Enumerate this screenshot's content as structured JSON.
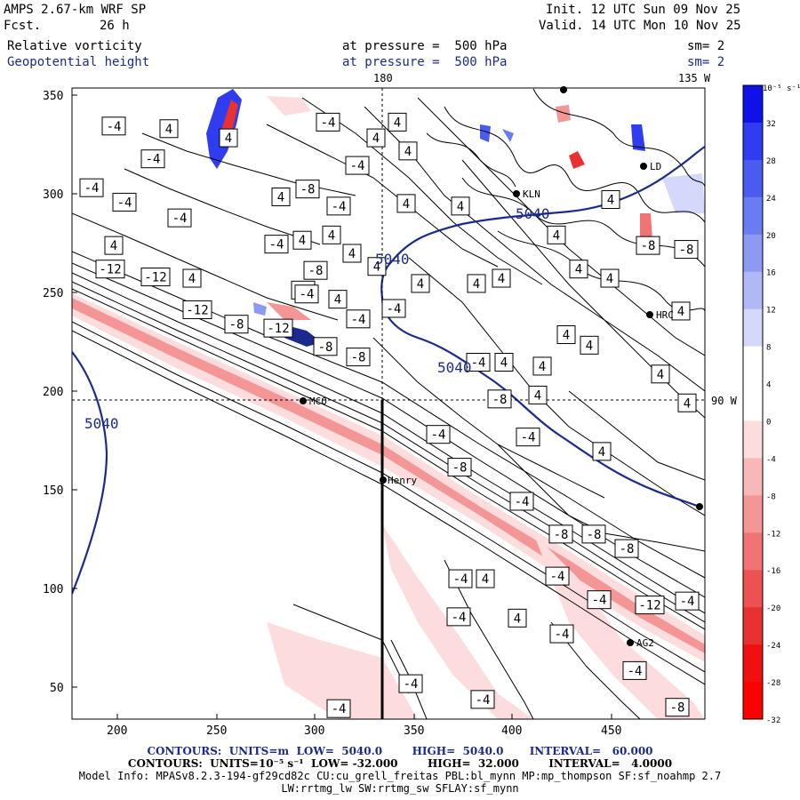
{
  "header": {
    "model": "AMPS 2.67-km WRF SP",
    "forecast_label": "Fcst.",
    "forecast_hours": "26 h",
    "init": "Init. 12 UTC Sun 09 Nov 25",
    "valid": "Valid. 14 UTC Mon 10 Nov 25",
    "field1": {
      "name": "Relative vorticity",
      "level": "at pressure =  500 hPa",
      "smooth": "sm= 2"
    },
    "field2": {
      "name": "Geopotential height",
      "level": "at pressure =  500 hPa",
      "smooth": "sm= 2"
    }
  },
  "map": {
    "meridian_labels": {
      "top_center": "180",
      "top_right": "135 W",
      "right": "90 W"
    },
    "x_ticks": [
      "200",
      "250",
      "300",
      "350",
      "400",
      "450"
    ],
    "y_ticks": [
      "50",
      "100",
      "150",
      "200",
      "250",
      "300",
      "350"
    ],
    "stations": [
      {
        "label": "MCO"
      },
      {
        "label": "Henry"
      },
      {
        "label": "KLN"
      },
      {
        "label": "HRC"
      },
      {
        "label": "AG2"
      },
      {
        "label": "LD"
      }
    ],
    "height_labels": [
      "5040",
      "5040",
      "5040",
      "5040"
    ]
  },
  "colorbar": {
    "unit_label": "10⁻⁵ s⁻¹",
    "ticks": [
      "32",
      "28",
      "24",
      "20",
      "16",
      "12",
      "8",
      "4",
      "0",
      "-4",
      "-8",
      "-12",
      "-16",
      "-20",
      "-24",
      "-28",
      "-32"
    ],
    "colors": [
      "#1010e8",
      "#2f3cf0",
      "#4a5cf0",
      "#6a7cf2",
      "#8c9af4",
      "#b0b8f6",
      "#d4d8fa",
      "#ffffff",
      "#ffffff",
      "#fcdcdc",
      "#f8b8b8",
      "#f49696",
      "#f07474",
      "#ec5252",
      "#e83232",
      "#f01010",
      "#ff0000"
    ]
  },
  "chart_data": {
    "type": "map",
    "title": "Relative vorticity / Geopotential height at 500 hPa",
    "x_range": [
      176,
      495
    ],
    "y_range": [
      34,
      356
    ],
    "contour_boxes": [
      {
        "v": "-4",
        "x": 128,
        "y": 327
      },
      {
        "v": "-4",
        "x": 172,
        "y": 302
      },
      {
        "v": "-4",
        "x": 103,
        "y": 280
      },
      {
        "v": "-4",
        "x": 140,
        "y": 269
      },
      {
        "v": "-4",
        "x": 202,
        "y": 257
      },
      {
        "v": "4",
        "x": 128,
        "y": 236
      },
      {
        "v": "-12",
        "x": 124,
        "y": 218
      },
      {
        "v": "-12",
        "x": 175,
        "y": 212
      },
      {
        "v": "4",
        "x": 216,
        "y": 211
      },
      {
        "v": "-12",
        "x": 222,
        "y": 187
      },
      {
        "v": "-8",
        "x": 266,
        "y": 176
      },
      {
        "v": "-12",
        "x": 313,
        "y": 173
      },
      {
        "v": "-8",
        "x": 366,
        "y": 159
      },
      {
        "v": "-8",
        "x": 403,
        "y": 151
      },
      {
        "v": "4",
        "x": 190,
        "y": 325
      },
      {
        "v": "4",
        "x": 257,
        "y": 318
      },
      {
        "v": "-4",
        "x": 369,
        "y": 330
      },
      {
        "v": "4",
        "x": 447,
        "y": 330
      },
      {
        "v": "4",
        "x": 423,
        "y": 318
      },
      {
        "v": "4",
        "x": 459,
        "y": 308
      },
      {
        "v": "-4",
        "x": 402,
        "y": 297
      },
      {
        "v": "-4",
        "x": 381,
        "y": 266
      },
      {
        "v": "4",
        "x": 316,
        "y": 273
      },
      {
        "v": "4",
        "x": 457,
        "y": 268
      },
      {
        "v": "4",
        "x": 373,
        "y": 244
      },
      {
        "v": "4",
        "x": 340,
        "y": 240
      },
      {
        "v": "-4",
        "x": 311,
        "y": 237
      },
      {
        "v": "4",
        "x": 396,
        "y": 230
      },
      {
        "v": "4",
        "x": 424,
        "y": 220
      },
      {
        "v": "-8",
        "x": 355,
        "y": 217
      },
      {
        "v": "-4",
        "x": 341,
        "y": 202
      },
      {
        "v": "4",
        "x": 380,
        "y": 195
      },
      {
        "v": "-4",
        "x": 443,
        "y": 188
      },
      {
        "v": "-4",
        "x": 403,
        "y": 180
      },
      {
        "v": "4",
        "x": 473,
        "y": 207
      },
      {
        "v": "4",
        "x": 536,
        "y": 207
      },
      {
        "v": "4",
        "x": 564,
        "y": 211
      },
      {
        "v": "4",
        "x": 651,
        "y": 218
      },
      {
        "v": "4",
        "x": 686,
        "y": 211
      },
      {
        "v": "4",
        "x": 626,
        "y": 244
      },
      {
        "v": "4",
        "x": 687,
        "y": 271
      },
      {
        "v": "-8",
        "x": 729,
        "y": 236
      },
      {
        "v": "4",
        "x": 766,
        "y": 186
      },
      {
        "v": "4",
        "x": 637,
        "y": 168
      },
      {
        "v": "4",
        "x": 663,
        "y": 160
      },
      {
        "v": "-4",
        "x": 538,
        "y": 147
      },
      {
        "v": "4",
        "x": 567,
        "y": 147
      },
      {
        "v": "4",
        "x": 610,
        "y": 144
      },
      {
        "v": "-8",
        "x": 562,
        "y": 119
      },
      {
        "v": "4",
        "x": 605,
        "y": 122
      },
      {
        "v": "4",
        "x": 743,
        "y": 138
      },
      {
        "v": "4",
        "x": 773,
        "y": 116
      },
      {
        "v": "-4",
        "x": 594,
        "y": 90
      },
      {
        "v": "4",
        "x": 677,
        "y": 79
      },
      {
        "v": "-4",
        "x": 493,
        "y": 92
      },
      {
        "v": "-8",
        "x": 517,
        "y": 67
      },
      {
        "v": "-4",
        "x": 587,
        "y": 41
      },
      {
        "v": "-8",
        "x": 631,
        "y": 16
      },
      {
        "v": "-8",
        "x": 668,
        "y": 16
      },
      {
        "v": "-8",
        "x": 705,
        "y": 5
      },
      {
        "v": "-4",
        "x": 518,
        "y": -18
      },
      {
        "v": "4",
        "x": 546,
        "y": -18
      },
      {
        "v": "-4",
        "x": 627,
        "y": -16
      },
      {
        "v": "-4",
        "x": 516,
        "y": -47
      },
      {
        "v": "4",
        "x": 582,
        "y": -48
      },
      {
        "v": "-4",
        "x": 674,
        "y": -34
      },
      {
        "v": "-12",
        "x": 731,
        "y": -38
      },
      {
        "v": "-4",
        "x": 773,
        "y": -35
      },
      {
        "v": "-4",
        "x": 632,
        "y": -60
      },
      {
        "v": "-4",
        "x": 714,
        "y": -88
      },
      {
        "v": "-4",
        "x": 462,
        "y": -98
      },
      {
        "v": "-4",
        "x": 543,
        "y": -110
      },
      {
        "v": "-4",
        "x": 381,
        "y": -117
      },
      {
        "v": "-8",
        "x": 762,
        "y": -116
      },
      {
        "v": "4",
        "x": 518,
        "y": 266
      },
      {
        "v": "-8",
        "x": 772,
        "y": 233
      },
      {
        "v": "-8",
        "x": 346,
        "y": 279
      },
      {
        "v": "-4",
        "x": 345,
        "y": 199
      }
    ]
  },
  "footer": {
    "line1": "CONTOURS:  UNITS=m  LOW=  5040.0        HIGH=  5040.0       INTERVAL=   60.000",
    "line2": "CONTOURS:  UNITS=10⁻⁵ s⁻¹  LOW= -32.000        HIGH=  32.000        INTERVAL=   4.0000",
    "line3": "Model Info: MPASv8.2.3-194-gf29cd82c CU:cu_grell_freitas PBL:bl_mynn MP:mp_thompson SF:sf_noahmp 2.7",
    "line4": "LW:rrtmg_lw SW:rrtmg_sw SFLAY:sf_mynn"
  }
}
